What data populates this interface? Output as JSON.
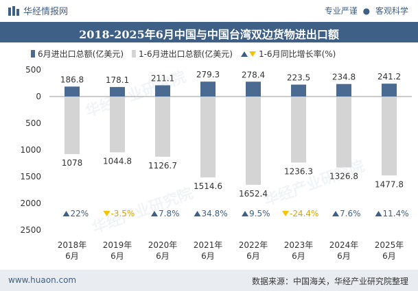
{
  "header": {
    "brand": "华经情报网",
    "right_1": "专业严谨",
    "right_sep": "●",
    "right_2": "客观科学"
  },
  "watermark": "华经产业研究院",
  "colors": {
    "brand": "#3e5f86",
    "bar_june": "#4a6a91",
    "bar_ytd": "#d4d4d4",
    "up": "#3e5f86",
    "down": "#f5c400"
  },
  "chart_data": {
    "type": "bar",
    "title": "2018-2025年6月中国与中国台湾双边货物进出口额",
    "categories": [
      "2018年\n6月",
      "2019年\n6月",
      "2020年\n6月",
      "2021年\n6月",
      "2022年\n6月",
      "2023年\n6月",
      "2024年\n6月",
      "2025年\n6月"
    ],
    "category_year": [
      "2018年",
      "2019年",
      "2020年",
      "2021年",
      "2022年",
      "2023年",
      "2024年",
      "2025年"
    ],
    "category_month": [
      "6月",
      "6月",
      "6月",
      "6月",
      "6月",
      "6月",
      "6月",
      "6月"
    ],
    "series": [
      {
        "name": "6月进出口总额(亿美元)",
        "values": [
          186.8,
          178.1,
          211.1,
          279.3,
          278.4,
          223.5,
          234.8,
          241.2
        ],
        "direction": "up"
      },
      {
        "name": "1-6月进出口总额(亿美元)",
        "values": [
          1078,
          1044.8,
          1126.7,
          1514.6,
          1652.4,
          1236.3,
          1326.8,
          1477.8
        ],
        "direction": "down"
      }
    ],
    "growth": {
      "name": "1-6月同比增长率(%)",
      "values": [
        22,
        -3.5,
        7.8,
        34.8,
        9.5,
        -24.4,
        7.6,
        11.4
      ],
      "labels": [
        "22%",
        "-3.5%",
        "7.8%",
        "34.8%",
        "9.5%",
        "-24.4%",
        "7.6%",
        "11.4%"
      ]
    },
    "y_axis": {
      "range": [
        -2500,
        500
      ],
      "ticks": [
        500,
        0,
        -500,
        -1000,
        -1500,
        -2000,
        -2500
      ],
      "tick_labels": [
        "500",
        "0",
        "500",
        "1000",
        "1500",
        "2000",
        "2500"
      ]
    },
    "legend": {
      "june": "6月进出口总额(亿美元)",
      "ytd": "1-6月进出口总额(亿美元)",
      "growth": "1-6月同比增长率(%)"
    }
  },
  "footer": {
    "left": "www.huaon.com",
    "right": "数据来源：中国海关，华经产业研究院整理"
  }
}
